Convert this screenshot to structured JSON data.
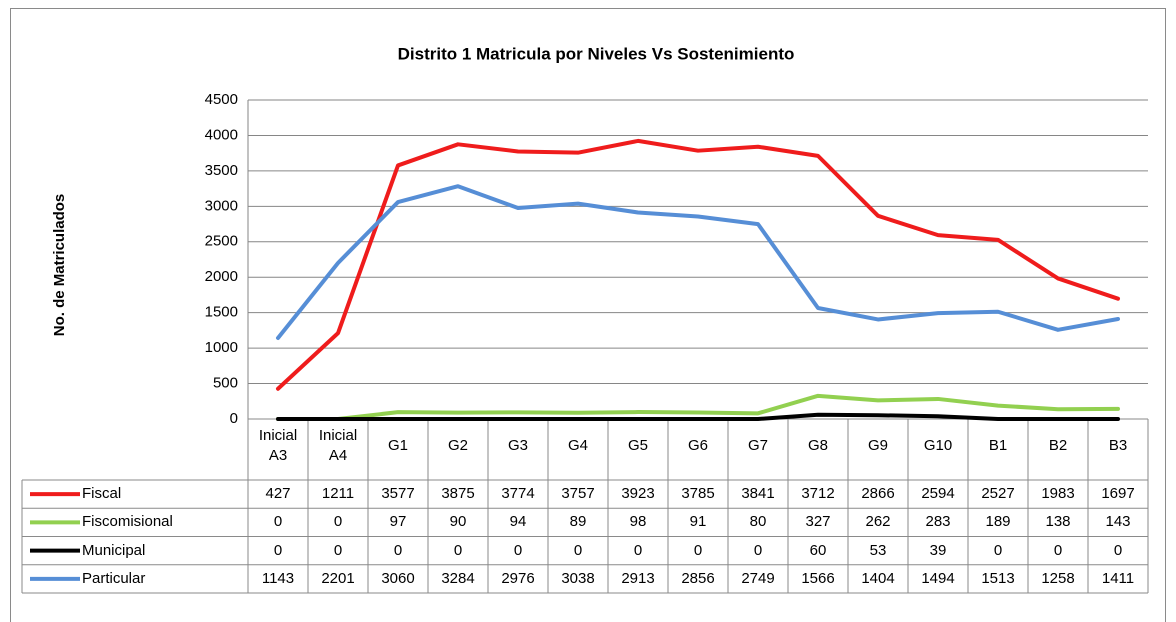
{
  "chart_data": {
    "type": "line",
    "title": "Distrito 1 Matricula por Niveles Vs Sostenimiento",
    "y_label": "No. de Matriculados",
    "categories": [
      "Inicial A3",
      "Inicial A4",
      "G1",
      "G2",
      "G3",
      "G4",
      "G5",
      "G6",
      "G7",
      "G8",
      "G9",
      "G10",
      "B1",
      "B2",
      "B3"
    ],
    "series": [
      {
        "name": "Fiscal",
        "color": "#ef1c1c",
        "values": [
          427,
          1211,
          3577,
          3875,
          3774,
          3757,
          3923,
          3785,
          3841,
          3712,
          2866,
          2594,
          2527,
          1983,
          1697
        ]
      },
      {
        "name": "Fiscomisional",
        "color": "#92d050",
        "values": [
          0,
          0,
          97,
          90,
          94,
          89,
          98,
          91,
          80,
          327,
          262,
          283,
          189,
          138,
          143
        ]
      },
      {
        "name": "Municipal",
        "color": "#000000",
        "values": [
          0,
          0,
          0,
          0,
          0,
          0,
          0,
          0,
          0,
          60,
          53,
          39,
          0,
          0,
          0
        ]
      },
      {
        "name": "Particular",
        "color": "#568ed6",
        "values": [
          1143,
          2201,
          3060,
          3284,
          2976,
          3038,
          2913,
          2856,
          2749,
          1566,
          1404,
          1494,
          1513,
          1258,
          1411
        ]
      }
    ],
    "ylim": [
      0,
      4500
    ],
    "yticks": [
      0,
      500,
      1000,
      1500,
      2000,
      2500,
      3000,
      3500,
      4000,
      4500
    ],
    "grid": true,
    "data_table": true
  }
}
